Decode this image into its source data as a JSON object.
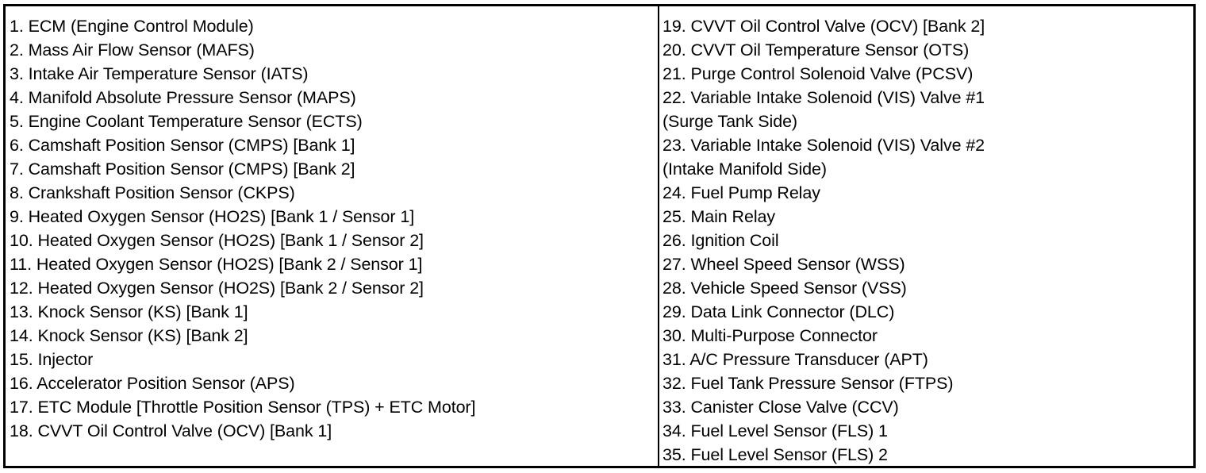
{
  "left_column": [
    "1. ECM (Engine Control Module)",
    "2. Mass Air Flow Sensor (MAFS)",
    "3. Intake Air Temperature Sensor (IATS)",
    "4. Manifold Absolute Pressure Sensor (MAPS)",
    "5. Engine Coolant Temperature Sensor (ECTS)",
    "6. Camshaft Position Sensor (CMPS) [Bank 1]",
    "7. Camshaft Position Sensor (CMPS) [Bank 2]",
    "8. Crankshaft Position Sensor (CKPS)",
    "9. Heated Oxygen Sensor (HO2S) [Bank 1 / Sensor 1]",
    "10. Heated Oxygen Sensor (HO2S) [Bank 1 / Sensor 2]",
    "11. Heated Oxygen Sensor (HO2S) [Bank 2 / Sensor 1]",
    "12. Heated Oxygen Sensor (HO2S) [Bank 2 / Sensor 2]",
    "13. Knock Sensor (KS) [Bank 1]",
    "14. Knock Sensor (KS) [Bank 2]",
    "15. Injector",
    "16. Accelerator Position Sensor (APS)",
    "17. ETC Module [Throttle Position Sensor (TPS) + ETC Motor]",
    "18. CVVT Oil Control Valve (OCV) [Bank 1]"
  ],
  "right_column": [
    "19. CVVT Oil Control Valve (OCV) [Bank 2]",
    "20. CVVT Oil Temperature Sensor (OTS)",
    "21. Purge Control Solenoid Valve (PCSV)",
    "22. Variable Intake Solenoid (VIS) Valve #1",
    "(Surge Tank Side)",
    "23. Variable Intake Solenoid (VIS) Valve #2",
    "(Intake Manifold Side)",
    "24. Fuel Pump Relay",
    "25. Main Relay",
    "26. Ignition Coil",
    "27. Wheel Speed Sensor (WSS)",
    "28. Vehicle Speed Sensor (VSS)",
    "29. Data Link Connector (DLC)",
    "30. Multi-Purpose Connector",
    "31. A/C Pressure Transducer (APT)",
    "32. Fuel Tank Pressure Sensor (FTPS)",
    "33. Canister Close Valve (CCV)",
    "34. Fuel Level Sensor (FLS) 1",
    "35. Fuel Level Sensor (FLS) 2"
  ]
}
